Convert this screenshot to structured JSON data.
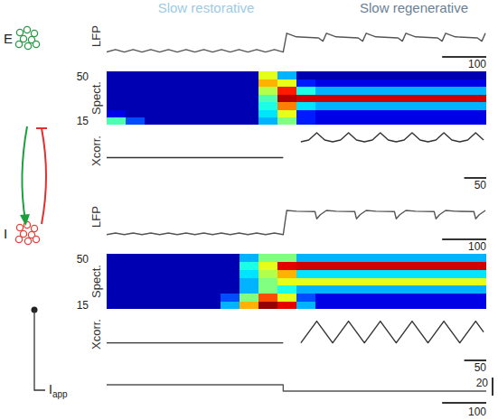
{
  "titles": [
    "Slow restorative",
    "Slow regenerative"
  ],
  "population_labels": [
    "E",
    "I"
  ],
  "chart_data": [
    {
      "type": "line",
      "ylabel": "LFP",
      "color": "#555555",
      "tick_labels": false,
      "xlim": [
        0,
        860
      ],
      "ylim": [
        0,
        1
      ],
      "scale_bar_x": 100,
      "x": [
        0,
        20,
        40,
        60,
        80,
        100,
        120,
        140,
        160,
        180,
        200,
        220,
        240,
        260,
        280,
        300,
        320,
        340,
        360,
        380,
        400,
        408,
        430,
        480,
        490,
        498,
        520,
        570,
        580,
        588,
        610,
        660,
        670,
        678,
        700,
        750,
        760,
        768,
        790,
        840,
        850,
        858
      ],
      "values": [
        0.06,
        0.13,
        0.06,
        0.13,
        0.06,
        0.13,
        0.06,
        0.13,
        0.06,
        0.13,
        0.06,
        0.13,
        0.06,
        0.13,
        0.06,
        0.13,
        0.06,
        0.13,
        0.06,
        0.13,
        0.06,
        0.58,
        0.48,
        0.45,
        0.36,
        0.58,
        0.48,
        0.45,
        0.36,
        0.58,
        0.48,
        0.45,
        0.36,
        0.58,
        0.48,
        0.45,
        0.36,
        0.58,
        0.48,
        0.45,
        0.36,
        0.58
      ]
    },
    {
      "type": "heatmap",
      "ylabel": "Spect.",
      "tick_labels": "y",
      "xlim": [
        0,
        860
      ],
      "ylim": [
        15,
        50
      ],
      "yticks": [
        15,
        50
      ],
      "color_range": [
        0,
        1
      ],
      "time_bins": [
        0,
        43,
        86,
        129,
        172,
        215,
        258,
        301,
        344,
        387,
        430,
        473,
        516,
        559,
        602,
        645,
        688,
        731,
        774,
        817,
        860
      ],
      "freq_bins": [
        15,
        20,
        25,
        30,
        35,
        40,
        45,
        50
      ],
      "values": [
        [
          0.45,
          0.2,
          0.05,
          0.05,
          0.05,
          0.05,
          0.05,
          0.05,
          0.3,
          0.5,
          0.15,
          0.1,
          0.1,
          0.1,
          0.1,
          0.1,
          0.1,
          0.1,
          0.1,
          0.1
        ],
        [
          0.1,
          0.05,
          0.05,
          0.05,
          0.05,
          0.05,
          0.05,
          0.05,
          0.35,
          0.6,
          0.15,
          0.1,
          0.1,
          0.1,
          0.1,
          0.1,
          0.1,
          0.1,
          0.1,
          0.1
        ],
        [
          0.05,
          0.05,
          0.05,
          0.05,
          0.05,
          0.05,
          0.05,
          0.05,
          0.4,
          0.75,
          0.35,
          0.3,
          0.3,
          0.3,
          0.3,
          0.3,
          0.3,
          0.3,
          0.3,
          0.3
        ],
        [
          0.05,
          0.05,
          0.05,
          0.05,
          0.05,
          0.05,
          0.05,
          0.05,
          0.45,
          0.95,
          0.92,
          0.92,
          0.92,
          0.92,
          0.92,
          0.92,
          0.92,
          0.92,
          0.92,
          0.92
        ],
        [
          0.05,
          0.05,
          0.05,
          0.05,
          0.05,
          0.05,
          0.05,
          0.05,
          0.55,
          0.85,
          0.4,
          0.3,
          0.3,
          0.3,
          0.3,
          0.3,
          0.3,
          0.3,
          0.3,
          0.3
        ],
        [
          0.05,
          0.05,
          0.05,
          0.05,
          0.05,
          0.05,
          0.05,
          0.05,
          0.7,
          0.6,
          0.15,
          0.1,
          0.1,
          0.1,
          0.1,
          0.1,
          0.1,
          0.1,
          0.1,
          0.1
        ],
        [
          0.05,
          0.05,
          0.05,
          0.05,
          0.05,
          0.05,
          0.05,
          0.05,
          0.6,
          0.3,
          0.05,
          0.05,
          0.05,
          0.05,
          0.05,
          0.05,
          0.05,
          0.05,
          0.05,
          0.05
        ]
      ]
    },
    {
      "type": "line",
      "ylabel": "Xcorr.",
      "color": "#333333",
      "tick_labels": false,
      "xlim": [
        0,
        860
      ],
      "ylim": [
        0,
        1
      ],
      "scale_bar_x": 50,
      "x": [
        0,
        100,
        200,
        300,
        400,
        420,
        440,
        458,
        476,
        494,
        512,
        530,
        548,
        566,
        584,
        602,
        620,
        638,
        656,
        674,
        692,
        710,
        728,
        746,
        764,
        782,
        800,
        818,
        836,
        854
      ],
      "values": [
        0.35,
        0.35,
        0.35,
        0.35,
        0.35,
        null,
        0.7,
        0.74,
        0.9,
        0.74,
        0.7,
        0.74,
        0.9,
        0.74,
        0.7,
        0.74,
        0.9,
        0.74,
        0.7,
        0.74,
        0.9,
        0.74,
        0.7,
        0.74,
        0.9,
        0.74,
        0.7,
        0.74,
        0.9,
        0.74
      ]
    },
    {
      "type": "line",
      "ylabel": "LFP",
      "color": "#555555",
      "tick_labels": false,
      "xlim": [
        0,
        860
      ],
      "ylim": [
        0,
        1
      ],
      "scale_bar_x": 100,
      "x": [
        0,
        20,
        40,
        60,
        80,
        100,
        120,
        140,
        160,
        180,
        200,
        220,
        240,
        260,
        280,
        300,
        320,
        340,
        360,
        380,
        400,
        408,
        430,
        472,
        476,
        484,
        498,
        520,
        562,
        566,
        574,
        588,
        610,
        652,
        656,
        664,
        678,
        700,
        742,
        746,
        754,
        768,
        790,
        832,
        836,
        844,
        858
      ],
      "values": [
        0.05,
        0.09,
        0.05,
        0.09,
        0.05,
        0.09,
        0.05,
        0.09,
        0.05,
        0.09,
        0.05,
        0.09,
        0.05,
        0.09,
        0.05,
        0.09,
        0.05,
        0.09,
        0.05,
        0.09,
        0.05,
        0.66,
        0.64,
        0.63,
        0.45,
        0.55,
        0.66,
        0.64,
        0.63,
        0.45,
        0.55,
        0.66,
        0.64,
        0.63,
        0.45,
        0.55,
        0.66,
        0.64,
        0.63,
        0.45,
        0.55,
        0.66,
        0.64,
        0.63,
        0.45,
        0.55,
        0.66
      ]
    },
    {
      "type": "heatmap",
      "ylabel": "Spect.",
      "tick_labels": "y",
      "xlim": [
        0,
        860
      ],
      "ylim": [
        15,
        50
      ],
      "yticks": [
        15,
        50
      ],
      "color_range": [
        0,
        1
      ],
      "time_bins": [
        0,
        43,
        86,
        129,
        172,
        215,
        258,
        301,
        344,
        387,
        430,
        473,
        516,
        559,
        602,
        645,
        688,
        731,
        774,
        817,
        860
      ],
      "freq_bins": [
        15,
        20,
        25,
        30,
        35,
        40,
        45,
        50
      ],
      "values": [
        [
          0.05,
          0.05,
          0.05,
          0.05,
          0.05,
          0.05,
          0.3,
          0.7,
          0.98,
          0.9,
          0.3,
          0.1,
          0.1,
          0.1,
          0.1,
          0.1,
          0.1,
          0.1,
          0.1,
          0.1
        ],
        [
          0.05,
          0.05,
          0.05,
          0.05,
          0.05,
          0.05,
          0.2,
          0.5,
          0.8,
          0.6,
          0.2,
          0.1,
          0.1,
          0.1,
          0.1,
          0.1,
          0.1,
          0.1,
          0.1,
          0.1
        ],
        [
          0.05,
          0.05,
          0.05,
          0.05,
          0.05,
          0.05,
          0.05,
          0.3,
          0.5,
          0.4,
          0.3,
          0.3,
          0.3,
          0.3,
          0.3,
          0.3,
          0.3,
          0.3,
          0.3,
          0.3
        ],
        [
          0.05,
          0.05,
          0.05,
          0.05,
          0.05,
          0.05,
          0.05,
          0.3,
          0.5,
          0.6,
          0.6,
          0.6,
          0.6,
          0.6,
          0.6,
          0.6,
          0.6,
          0.6,
          0.6,
          0.6
        ],
        [
          0.05,
          0.05,
          0.05,
          0.05,
          0.05,
          0.05,
          0.05,
          0.35,
          0.55,
          0.7,
          0.35,
          0.35,
          0.35,
          0.35,
          0.35,
          0.35,
          0.35,
          0.35,
          0.35,
          0.35
        ],
        [
          0.05,
          0.05,
          0.05,
          0.05,
          0.05,
          0.05,
          0.05,
          0.4,
          0.6,
          0.9,
          0.92,
          0.92,
          0.92,
          0.92,
          0.92,
          0.92,
          0.92,
          0.92,
          0.92,
          0.92
        ],
        [
          0.05,
          0.05,
          0.05,
          0.05,
          0.05,
          0.05,
          0.05,
          0.3,
          0.5,
          0.5,
          0.3,
          0.3,
          0.3,
          0.3,
          0.3,
          0.3,
          0.3,
          0.3,
          0.3,
          0.3
        ]
      ]
    },
    {
      "type": "line",
      "ylabel": "Xcorr.",
      "color": "#333333",
      "tick_labels": false,
      "xlim": [
        0,
        860
      ],
      "ylim": [
        0,
        1
      ],
      "scale_bar_x": 50,
      "x": [
        0,
        100,
        200,
        300,
        400,
        420,
        440,
        458,
        476,
        494,
        512,
        530,
        548,
        566,
        584,
        602,
        620,
        638,
        656,
        674,
        692,
        710,
        728,
        746,
        764,
        782,
        800,
        818,
        836,
        854
      ],
      "values": [
        0.3,
        0.3,
        0.3,
        0.3,
        0.3,
        null,
        0.3,
        0.55,
        0.8,
        0.55,
        0.3,
        0.55,
        0.8,
        0.55,
        0.3,
        0.55,
        0.8,
        0.55,
        0.3,
        0.55,
        0.8,
        0.55,
        0.3,
        0.55,
        0.8,
        0.55,
        0.3,
        0.55,
        0.8,
        0.55
      ]
    },
    {
      "type": "line",
      "ylabel": "I",
      "ylabel_sub": "app",
      "color": "#555555",
      "tick_labels": false,
      "xlim": [
        0,
        860
      ],
      "ylim": [
        0,
        20
      ],
      "scale_bar_y": 20,
      "scale_bar_x": 100,
      "x": [
        0,
        400,
        400,
        860
      ],
      "values": [
        12,
        12,
        5,
        5
      ]
    }
  ]
}
